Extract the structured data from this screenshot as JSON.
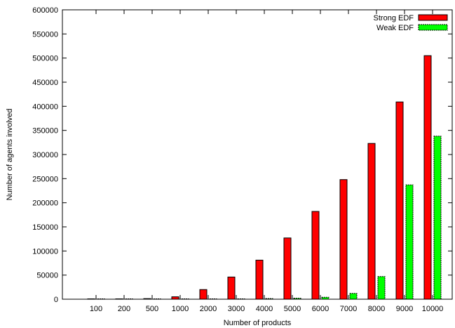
{
  "chart_data": {
    "type": "bar",
    "title": "",
    "xlabel": "Number of products",
    "ylabel": "Number of agents involved",
    "categories": [
      "100",
      "200",
      "500",
      "1000",
      "2000",
      "3000",
      "4000",
      "5000",
      "6000",
      "7000",
      "8000",
      "9000",
      "10000"
    ],
    "series": [
      {
        "name": "Strong EDF",
        "color": "#ff0000",
        "values": [
          200,
          400,
          1200,
          5000,
          20000,
          46000,
          81000,
          127000,
          182000,
          248000,
          323000,
          409000,
          505000
        ]
      },
      {
        "name": "Weak EDF",
        "color": "#00ff00",
        "values": [
          0,
          0,
          0,
          300,
          500,
          800,
          1200,
          2000,
          4000,
          12000,
          47000,
          237000,
          338000
        ]
      }
    ],
    "ylim": [
      0,
      600000
    ],
    "yticks": [
      "0",
      "50000",
      "100000",
      "150000",
      "200000",
      "250000",
      "300000",
      "350000",
      "400000",
      "450000",
      "500000",
      "550000",
      "600000"
    ],
    "ytick_values": [
      0,
      50000,
      100000,
      150000,
      200000,
      250000,
      300000,
      350000,
      400000,
      450000,
      500000,
      550000,
      600000
    ],
    "grid": false,
    "legend_position": "top-right"
  }
}
